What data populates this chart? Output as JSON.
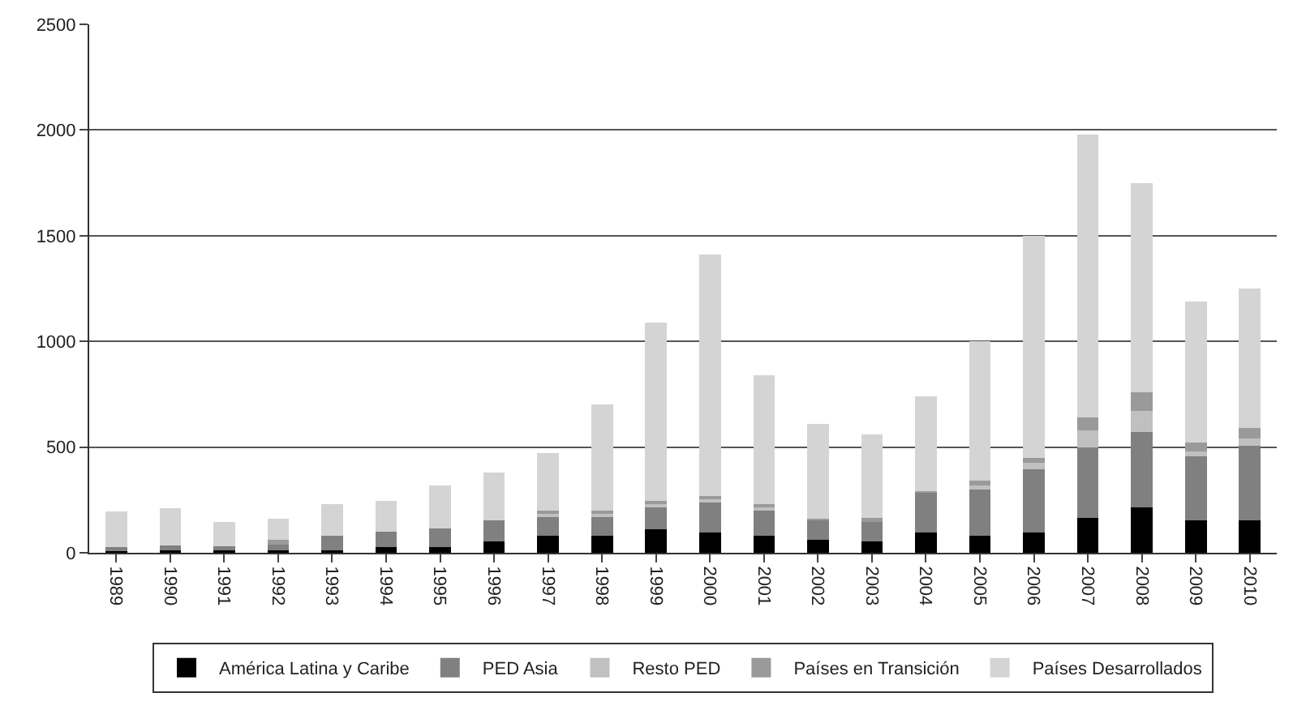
{
  "chart_data": {
    "type": "bar",
    "stacked": true,
    "categories": [
      "1989",
      "1990",
      "1991",
      "1992",
      "1993",
      "1994",
      "1995",
      "1996",
      "1997",
      "1998",
      "1999",
      "2000",
      "2001",
      "2002",
      "2003",
      "2004",
      "2005",
      "2006",
      "2007",
      "2008",
      "2009",
      "2010"
    ],
    "series": [
      {
        "name": "América Latina y Caribe",
        "color": "#000000",
        "values": [
          10,
          10,
          10,
          10,
          10,
          25,
          25,
          55,
          80,
          80,
          110,
          95,
          80,
          60,
          55,
          95,
          80,
          95,
          165,
          215,
          155,
          155
        ]
      },
      {
        "name": "PED Asia",
        "color": "#808080",
        "values": [
          15,
          25,
          20,
          35,
          70,
          75,
          90,
          100,
          90,
          90,
          110,
          150,
          120,
          95,
          95,
          190,
          220,
          300,
          335,
          355,
          300,
          350
        ]
      },
      {
        "name": "Resto PED",
        "color": "#c0c0c0",
        "values": [
          null,
          null,
          null,
          null,
          null,
          null,
          null,
          null,
          20,
          20,
          15,
          15,
          15,
          null,
          null,
          null,
          20,
          30,
          80,
          100,
          25,
          35
        ]
      },
      {
        "name": "Países en Transición",
        "color": "#9a9a9a",
        "values": [
          0,
          0,
          0,
          15,
          0,
          0,
          0,
          0,
          10,
          10,
          10,
          10,
          15,
          5,
          15,
          5,
          20,
          25,
          60,
          90,
          40,
          50
        ]
      },
      {
        "name": "Países Desarrollados",
        "color": "#d4d4d4",
        "values": [
          170,
          175,
          115,
          100,
          150,
          145,
          205,
          225,
          270,
          500,
          845,
          1140,
          610,
          450,
          395,
          450,
          660,
          1050,
          1340,
          990,
          670,
          660
        ]
      }
    ],
    "ylim": [
      0,
      2500
    ],
    "yticks": [
      0,
      500,
      1000,
      1500,
      2000,
      2500
    ],
    "grid": "y",
    "legend": "bottom"
  }
}
